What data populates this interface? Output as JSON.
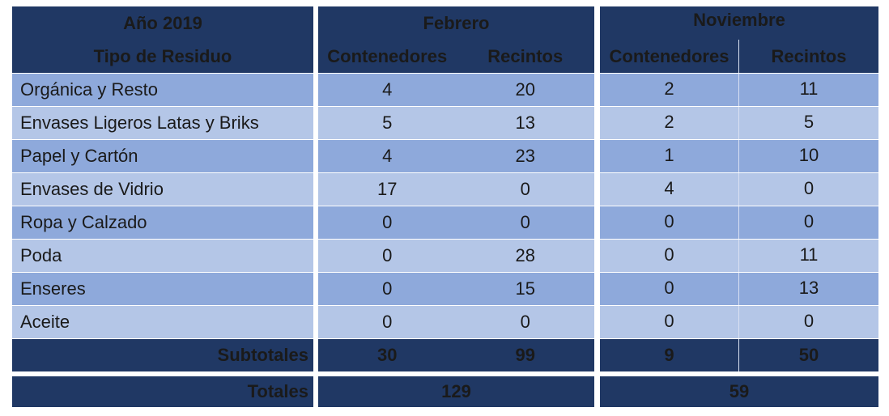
{
  "table": {
    "year_label": "Año 2019",
    "type_label": "Tipo de Residuo",
    "months": [
      {
        "name": "Febrero",
        "col_a": "Contenedores",
        "col_b": "Recintos"
      },
      {
        "name": "Noviembre",
        "col_a": "Contenedores",
        "col_b": "Recintos"
      }
    ],
    "rows": [
      {
        "label": "Orgánica y Resto",
        "feb_c": "4",
        "feb_r": "20",
        "nov_c": "2",
        "nov_r": "11"
      },
      {
        "label": "Envases Ligeros Latas y Briks",
        "feb_c": "5",
        "feb_r": "13",
        "nov_c": "2",
        "nov_r": "5"
      },
      {
        "label": "Papel y Cartón",
        "feb_c": "4",
        "feb_r": "23",
        "nov_c": "1",
        "nov_r": "10"
      },
      {
        "label": "Envases de Vidrio",
        "feb_c": "17",
        "feb_r": "0",
        "nov_c": "4",
        "nov_r": "0"
      },
      {
        "label": "Ropa y Calzado",
        "feb_c": "0",
        "feb_r": "0",
        "nov_c": "0",
        "nov_r": "0"
      },
      {
        "label": "Poda",
        "feb_c": "0",
        "feb_r": "28",
        "nov_c": "0",
        "nov_r": "11"
      },
      {
        "label": "Enseres",
        "feb_c": "0",
        "feb_r": "15",
        "nov_c": "0",
        "nov_r": "13"
      },
      {
        "label": "Aceite",
        "feb_c": "0",
        "feb_r": "0",
        "nov_c": "0",
        "nov_r": "0"
      }
    ],
    "subtotals": {
      "label": "Subtotales",
      "feb_c": "30",
      "feb_r": "99",
      "nov_c": "9",
      "nov_r": "50"
    },
    "totals": {
      "label": "Totales",
      "feb": "129",
      "nov": "59"
    }
  },
  "colors": {
    "header_bg": "#203864",
    "row_dark": "#8ea9db",
    "row_light": "#b4c6e7"
  }
}
